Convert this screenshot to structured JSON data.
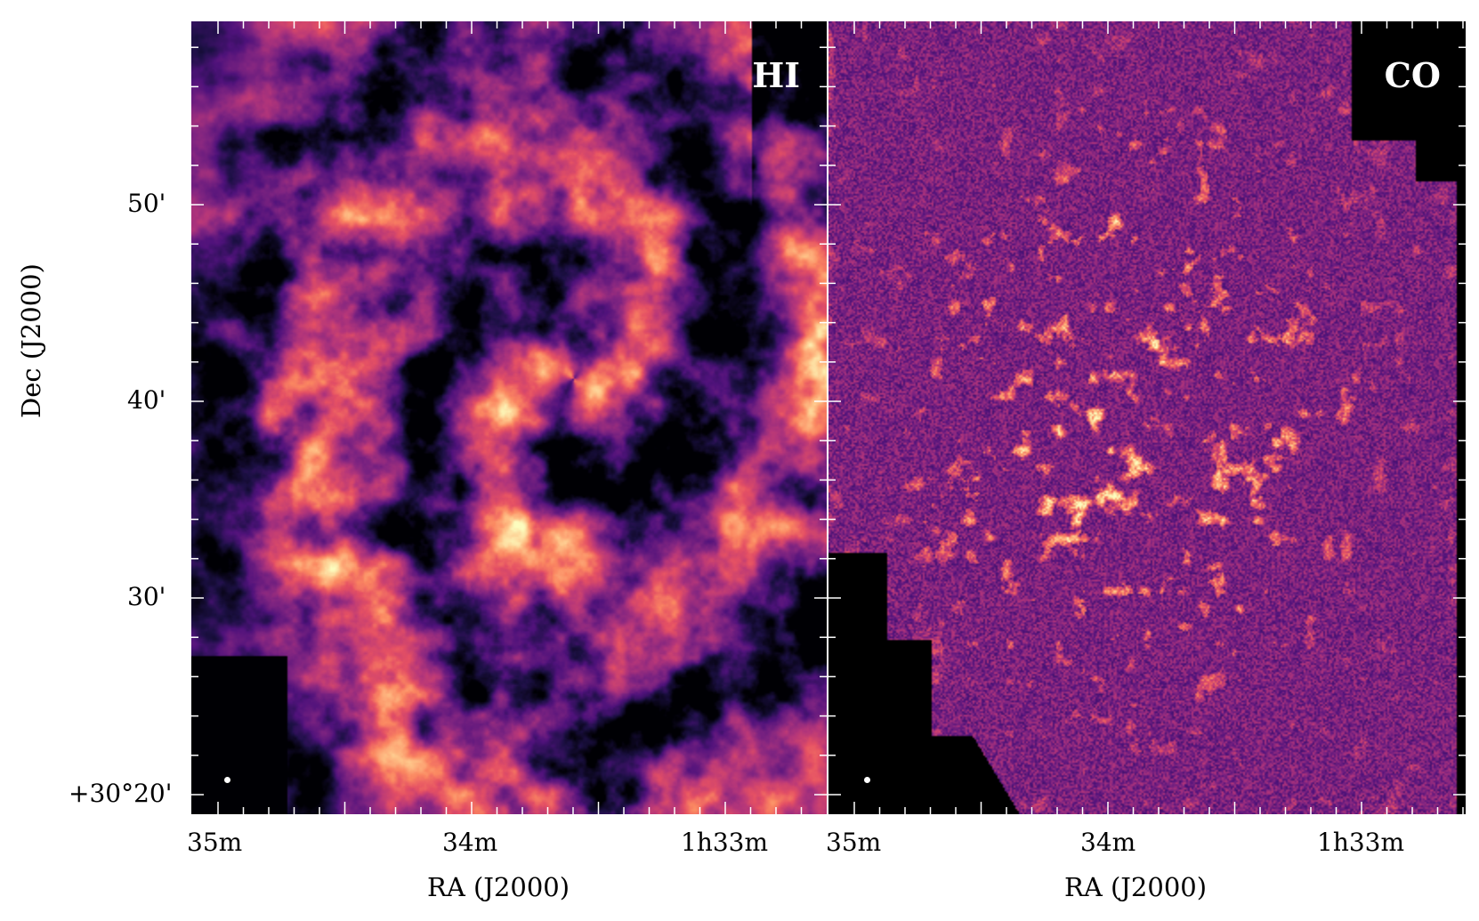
{
  "panels": [
    {
      "label": "HI",
      "colormap": "magma"
    },
    {
      "label": "CO",
      "colormap": "magma"
    }
  ],
  "x_axis": {
    "label": "RA (J2000)",
    "ticks": [
      "35m",
      "34m",
      "1h33m"
    ]
  },
  "y_axis": {
    "label": "Dec (J2000)",
    "ticks": [
      "50'",
      "40'",
      "30'",
      "+30°20'"
    ]
  },
  "colors": {
    "background_blank": "#000000",
    "colormap_low": "#000004",
    "colormap_mid": "#b63679",
    "colormap_high": "#fcfdbf"
  }
}
